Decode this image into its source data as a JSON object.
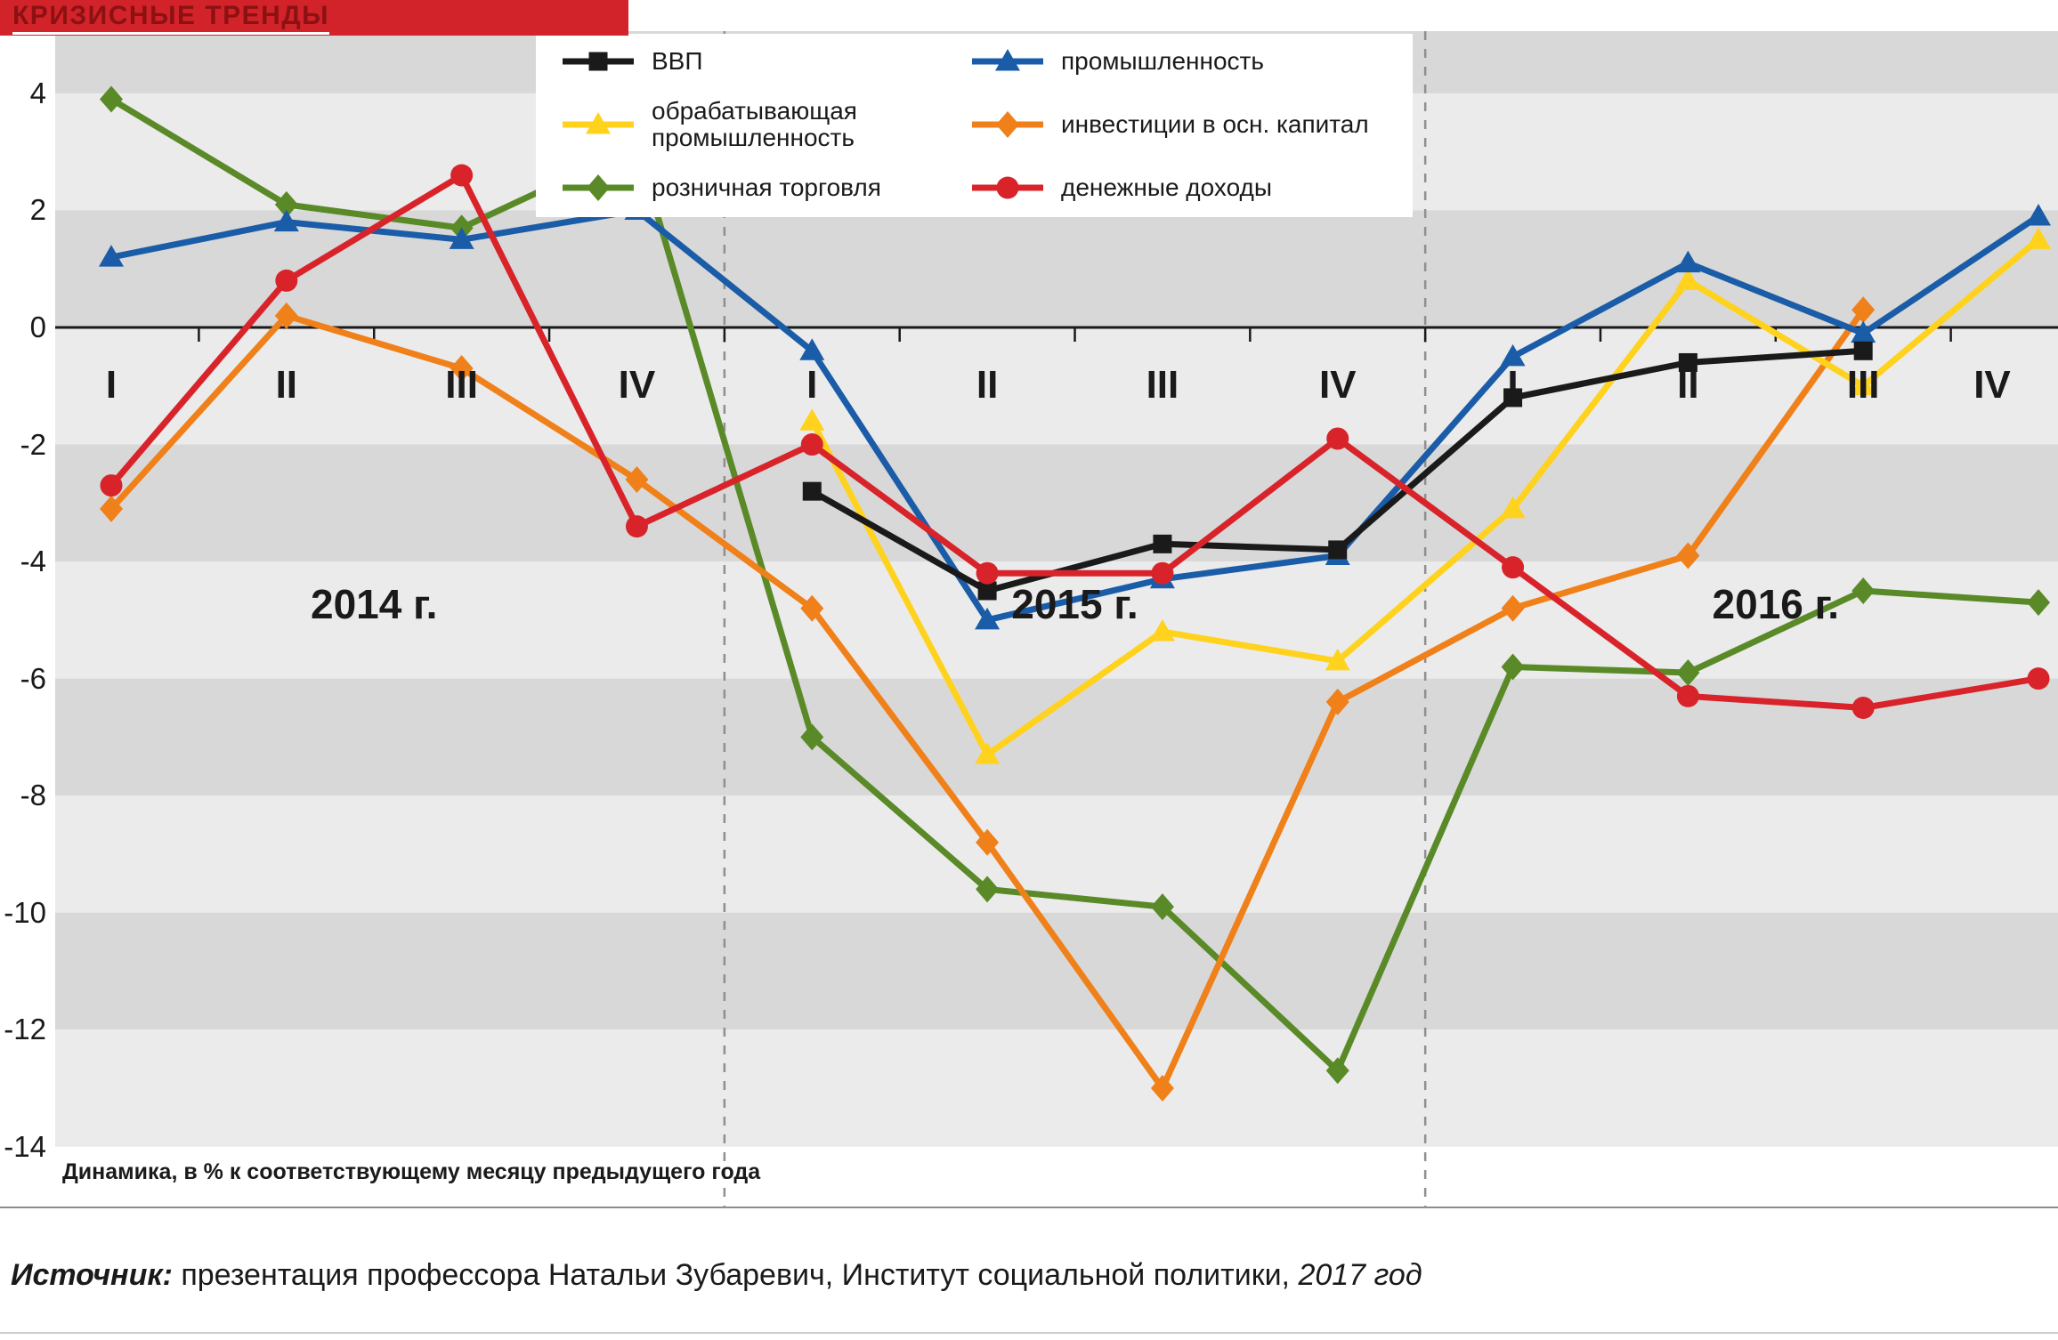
{
  "source": {
    "label": "Источник:",
    "text": " презентация профессора Натальи Зубаревич, Институт  социальной политики,  ",
    "year": "2017 год"
  },
  "colors": {
    "title_bg": "#d2232a",
    "title_text": "#8c1113",
    "band_light": "#ebebeb",
    "band_dark": "#d8d8d8",
    "axis": "#1a1a1a",
    "separator": "#8f8f8f"
  },
  "chart_data": {
    "type": "line",
    "title": "КРИЗИСНЫЕ ТРЕНДЫ",
    "note": "Динамика, в % к соответствующему месяцу предыдущего года",
    "x_labels": [
      "I",
      "II",
      "III",
      "IV",
      "I",
      "II",
      "III",
      "IV",
      "I",
      "II",
      "III",
      "IV"
    ],
    "year_labels": [
      "2014 г.",
      "2015 г.",
      "2016 г."
    ],
    "y_ticks": [
      4,
      2,
      0,
      -2,
      -4,
      -6,
      -8,
      -10,
      -12,
      -14
    ],
    "ylim": [
      -14,
      4
    ],
    "grid": "horizontal-bands",
    "legend_position": "top",
    "series": [
      {
        "key": "retail",
        "label": "розничная торговля",
        "color": "#5a8a28",
        "marker": "diamond",
        "values": [
          3.9,
          2.1,
          1.7,
          3.1,
          -7.0,
          -9.6,
          -9.9,
          -12.7,
          -5.8,
          -5.9,
          -4.5,
          -4.7
        ]
      },
      {
        "key": "investment",
        "label": "инвестиции в осн. капитал",
        "color": "#f08019",
        "marker": "diamond",
        "values": [
          -3.1,
          0.2,
          -0.7,
          -2.6,
          -4.8,
          -8.8,
          -13.0,
          -6.4,
          -4.8,
          -3.9,
          0.3,
          null
        ]
      },
      {
        "key": "manufacturing",
        "label": "обрабатывающая\nпромышленность",
        "color": "#ffd21e",
        "marker": "triangle",
        "values": [
          null,
          null,
          null,
          null,
          -1.6,
          -7.3,
          -5.2,
          -5.7,
          -3.1,
          0.8,
          -1.0,
          1.5
        ]
      },
      {
        "key": "industry",
        "label": "промышленность",
        "color": "#1a5ca8",
        "marker": "triangle",
        "values": [
          1.2,
          1.8,
          1.5,
          2.0,
          -0.4,
          -5.0,
          -4.3,
          -3.9,
          -0.5,
          1.1,
          -0.1,
          1.9
        ]
      },
      {
        "key": "gdp",
        "label": "ВВП",
        "color": "#1a1a1a",
        "marker": "square",
        "values": [
          null,
          null,
          null,
          null,
          -2.8,
          -4.5,
          -3.7,
          -3.8,
          -1.2,
          -0.6,
          -0.4,
          null
        ]
      },
      {
        "key": "income",
        "label": "денежные доходы",
        "color": "#d9232a",
        "marker": "circle",
        "values": [
          -2.7,
          0.8,
          2.6,
          -3.4,
          -2.0,
          -4.2,
          -4.2,
          -1.9,
          -4.1,
          -6.3,
          -6.5,
          -6.0
        ]
      }
    ],
    "legend_columns": [
      [
        "gdp",
        "manufacturing",
        "retail"
      ],
      [
        "industry",
        "investment",
        "income"
      ]
    ]
  }
}
